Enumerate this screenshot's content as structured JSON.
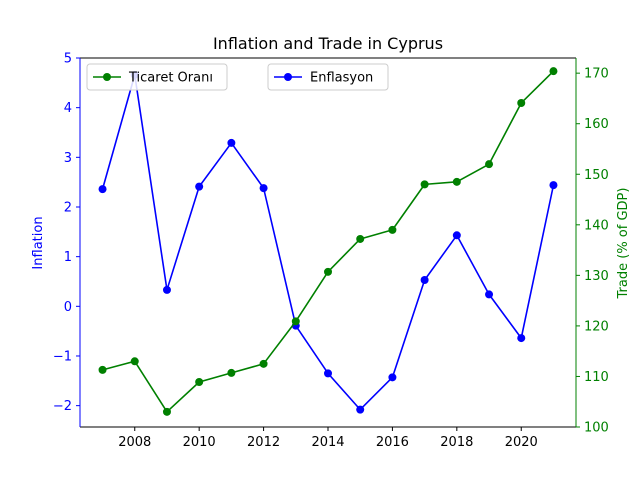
{
  "chart_data": {
    "type": "line",
    "title": "Inflation and Trade in Cyprus",
    "xlabel": "",
    "x": [
      2007,
      2008,
      2009,
      2010,
      2011,
      2012,
      2013,
      2014,
      2015,
      2016,
      2017,
      2018,
      2019,
      2020,
      2021
    ],
    "xlim": [
      2006.3,
      2021.7
    ],
    "x_ticks": [
      2008,
      2010,
      2012,
      2014,
      2016,
      2018,
      2020
    ],
    "grid": false,
    "left_axis": {
      "label": "Inflation",
      "color": "#0000ff",
      "ylim": [
        -2.43,
        5.0
      ],
      "ticks": [
        -2,
        -1,
        0,
        1,
        2,
        3,
        4,
        5
      ],
      "tick_labels": [
        "−2",
        "−1",
        "0",
        "1",
        "2",
        "3",
        "4",
        "5"
      ]
    },
    "right_axis": {
      "label": "Trade (% of GDP)",
      "color": "#008000",
      "ylim": [
        100.0,
        173.0
      ],
      "ticks": [
        100,
        110,
        120,
        130,
        140,
        150,
        160,
        170
      ],
      "tick_labels": [
        "100",
        "110",
        "120",
        "130",
        "140",
        "150",
        "160",
        "170"
      ]
    },
    "series": [
      {
        "name": "Enflasyon",
        "axis": "left",
        "color": "#0000ff",
        "marker": "circle",
        "values": [
          2.36,
          4.66,
          0.33,
          2.41,
          3.29,
          2.38,
          -0.39,
          -1.35,
          -2.08,
          -1.43,
          0.53,
          1.43,
          0.24,
          -0.64,
          2.44
        ]
      },
      {
        "name": "Ticaret Oranı",
        "axis": "right",
        "color": "#008000",
        "marker": "circle",
        "values": [
          111.3,
          113.0,
          103.0,
          108.9,
          110.7,
          112.5,
          120.9,
          130.7,
          137.2,
          139.0,
          148.0,
          148.5,
          152.0,
          164.1,
          170.4
        ]
      }
    ],
    "legends": [
      {
        "position": "upper-left",
        "entries": [
          "Ticaret Oranı"
        ]
      },
      {
        "position": "upper-center",
        "entries": [
          "Enflasyon"
        ]
      }
    ]
  }
}
